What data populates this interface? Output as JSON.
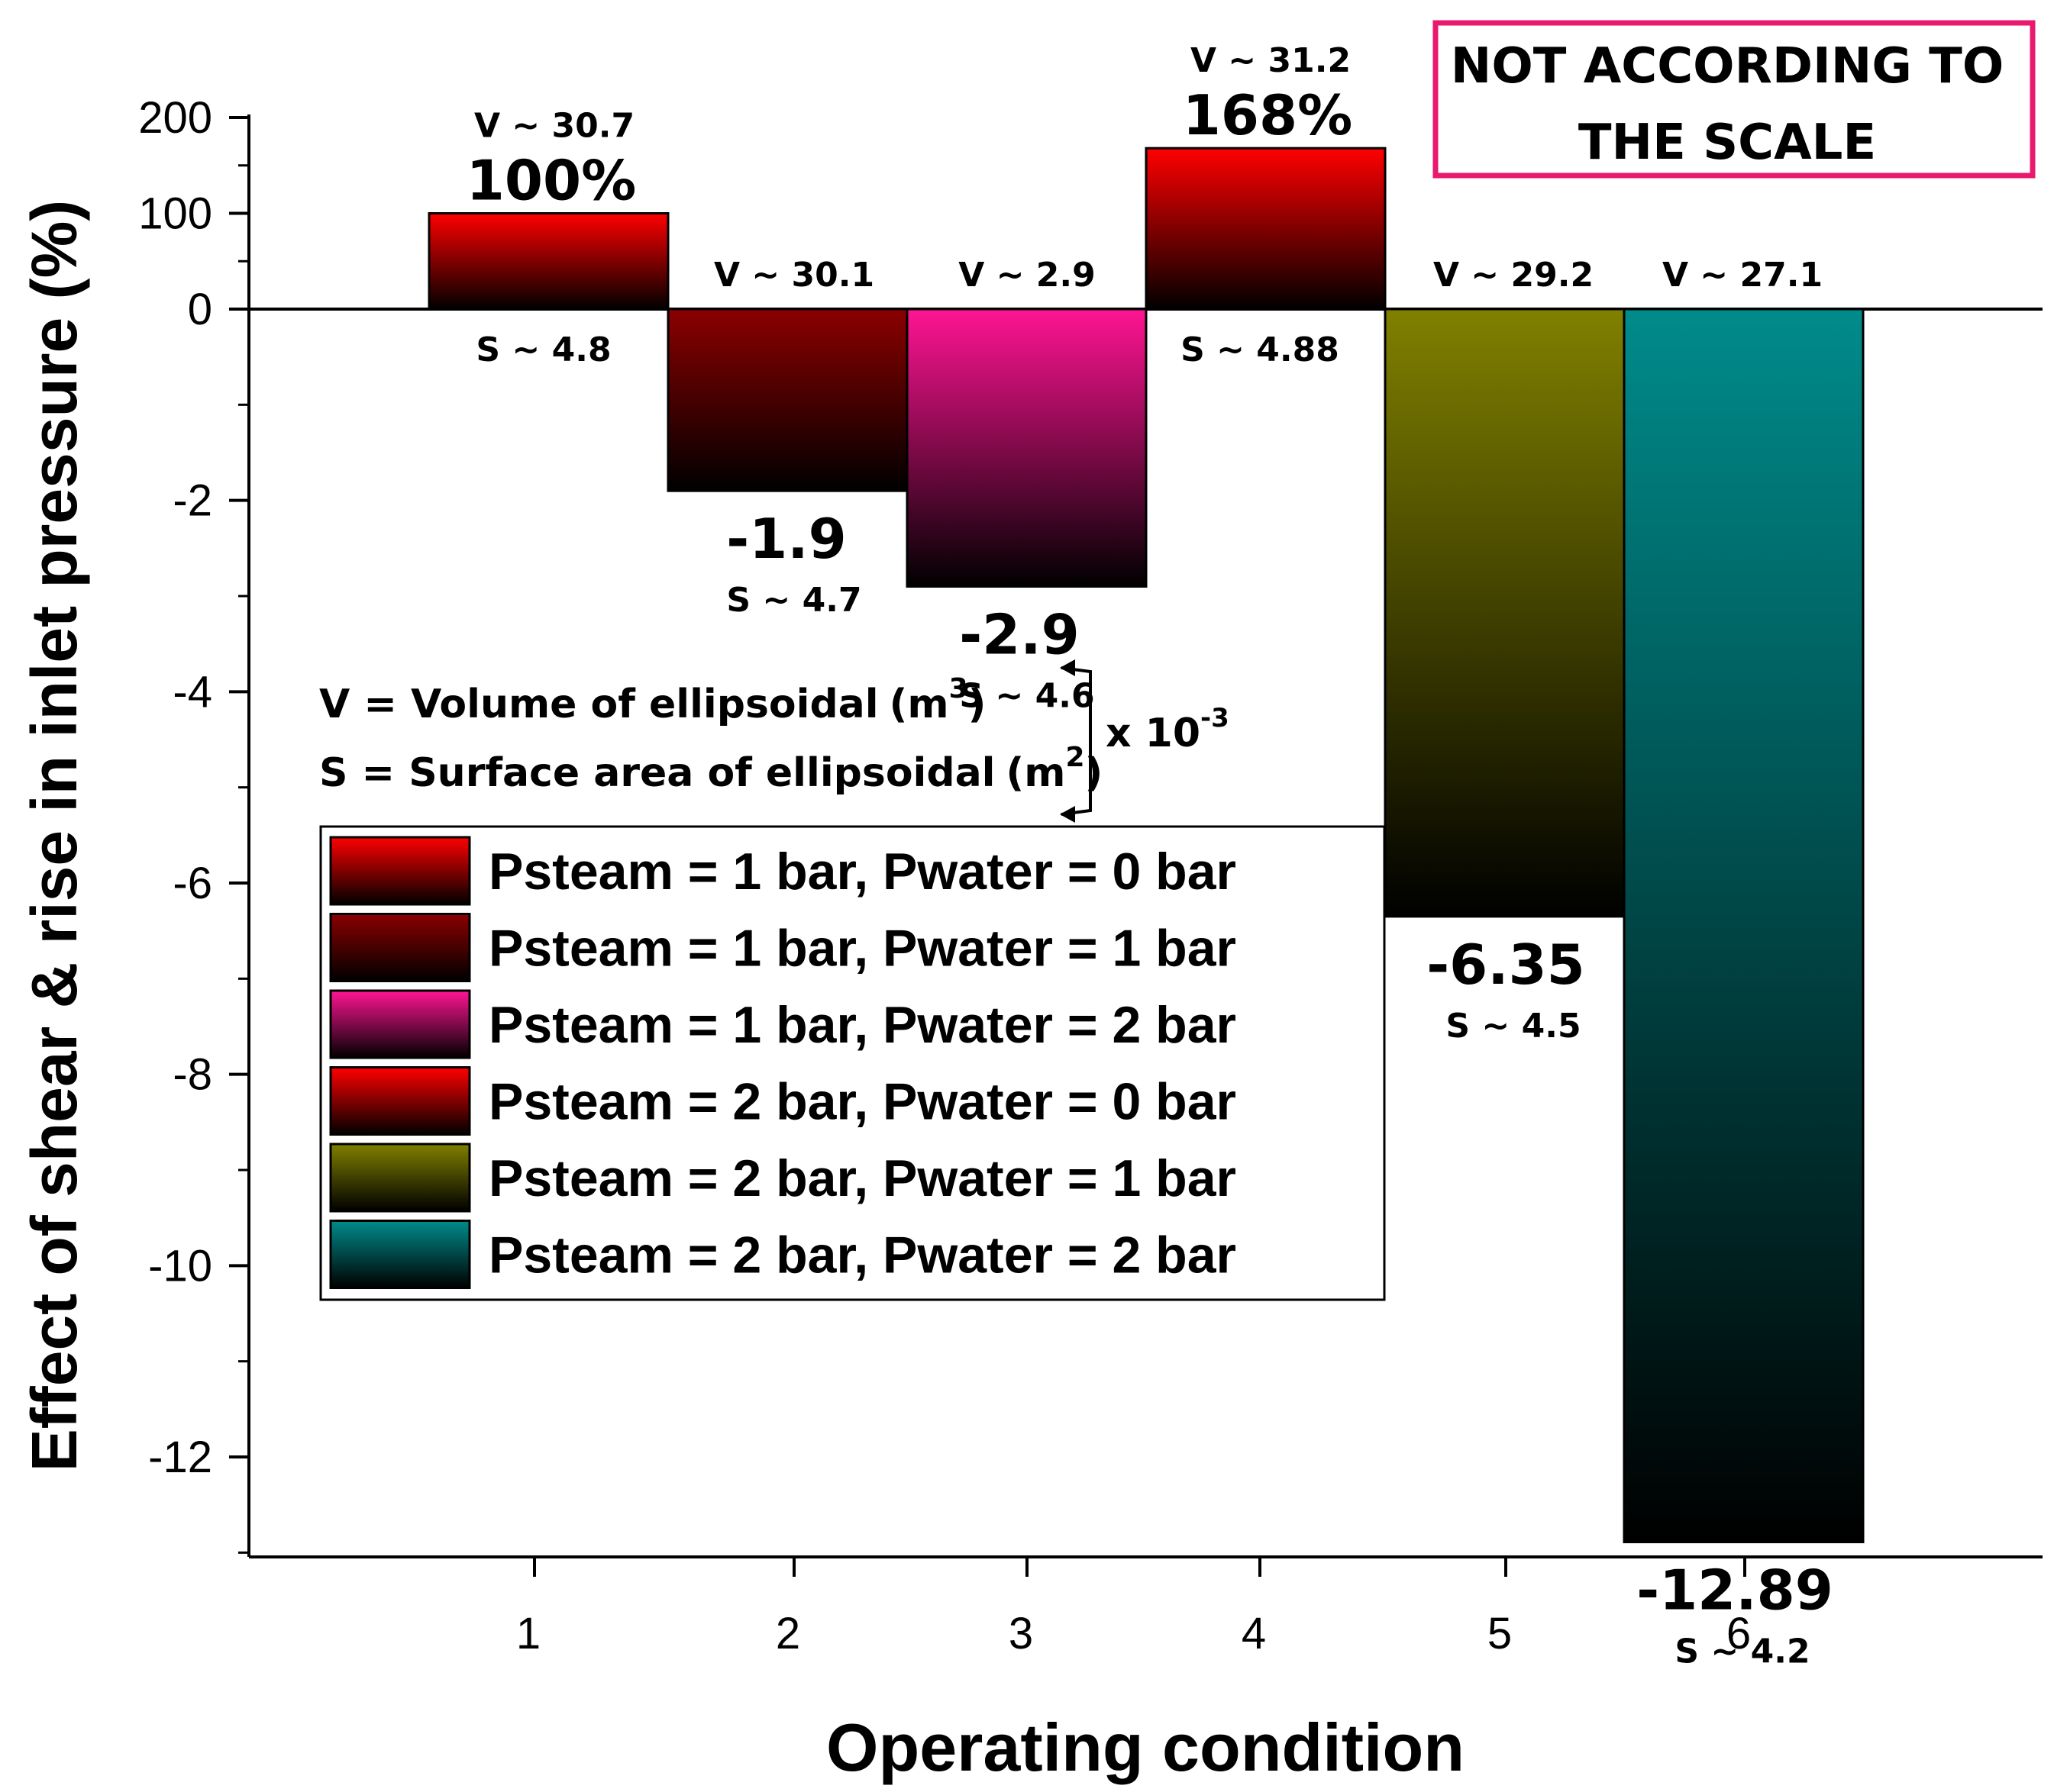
{
  "chart_data": {
    "type": "bar",
    "title": "",
    "xlabel": "Operating condition",
    "ylabel": "Effect of shear & rise in inlet pressure (%)",
    "categories": [
      "1",
      "2",
      "3",
      "4",
      "5",
      "6"
    ],
    "values": [
      100,
      -1.9,
      -2.9,
      168,
      -6.35,
      -12.89
    ],
    "value_labels": [
      "100%",
      "-1.9",
      "-2.9",
      "168%",
      "-6.35",
      "-12.89"
    ],
    "volume_labels": [
      "V ~ 30.7",
      "V ~ 30.1",
      "V ~ 2.9",
      "V ~ 31.2",
      "V ~ 29.2",
      "V ~ 27.1"
    ],
    "surface_labels": [
      "S ~  4.8",
      "S ~ 4.7",
      "S ~ 4.6",
      "S ~ 4.88",
      "S ~ 4.5",
      "S ~ 4.2"
    ],
    "y_axis_note": "broken scale: 0 to 200 compressed in upper segment, 0 to -13 below",
    "yticks_upper": [
      "200",
      "100",
      "0"
    ],
    "yticks_lower": [
      "-2",
      "-4",
      "-6",
      "-8",
      "-10",
      "-12"
    ],
    "ylim_upper": [
      0,
      200
    ],
    "ylim_lower": [
      -13,
      0
    ],
    "legend": [
      "Psteam = 1 bar, Pwater = 0 bar",
      "Psteam = 1 bar, Pwater = 1 bar",
      "Psteam = 1 bar, Pwater = 2 bar",
      "Psteam = 2 bar, Pwater = 0 bar",
      "Psteam = 2 bar, Pwater = 1 bar",
      "Psteam = 2 bar, Pwater = 2 bar"
    ],
    "colors": [
      "#ff0000",
      "#8b0000",
      "#ff1493",
      "#ff0000",
      "#808000",
      "#008b8b"
    ],
    "legend_placement": "center-left",
    "grid": false
  },
  "notes": {
    "volume_prefix": "V = Volume of ellipsoidal",
    "volume_unit_base": "(m",
    "volume_unit_exp": "3",
    "volume_unit_close": ")",
    "surface_prefix": "S = Surface area of ellipsoidal",
    "surface_unit_base": "(m",
    "surface_unit_exp": "2",
    "surface_unit_close": ")",
    "multiplier_base": "x 10",
    "multiplier_exp": "-3"
  },
  "stamp": {
    "line1": "NOT ACCORDING TO",
    "line2": "THE SCALE",
    "border_color": "#e8196e"
  }
}
